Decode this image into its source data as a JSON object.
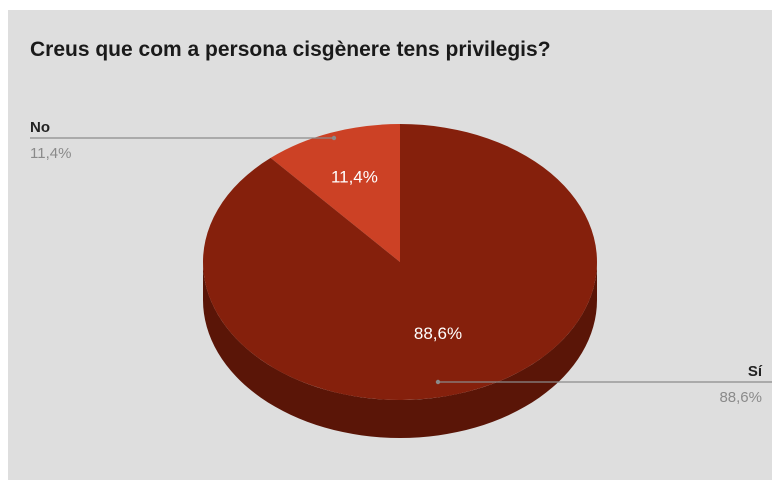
{
  "chart_data": {
    "type": "pie",
    "title": "Creus que com a persona cisgènere tens privilegis?",
    "slices": [
      {
        "label": "No",
        "value": 11.4,
        "value_label": "11,4%",
        "color": "#cc4125",
        "side_color": "#8a2a16"
      },
      {
        "label": "Sí",
        "value": 88.6,
        "value_label": "88,6%",
        "color": "#85200c",
        "side_color": "#5a1507"
      }
    ],
    "style": "3d",
    "legend": "callouts"
  },
  "colors": {
    "background": "#dedede",
    "leader_line": "#8a8a8a",
    "callout_value": "#8a8a8a",
    "callout_label": "#222222",
    "slice_text": "#ffffff"
  }
}
